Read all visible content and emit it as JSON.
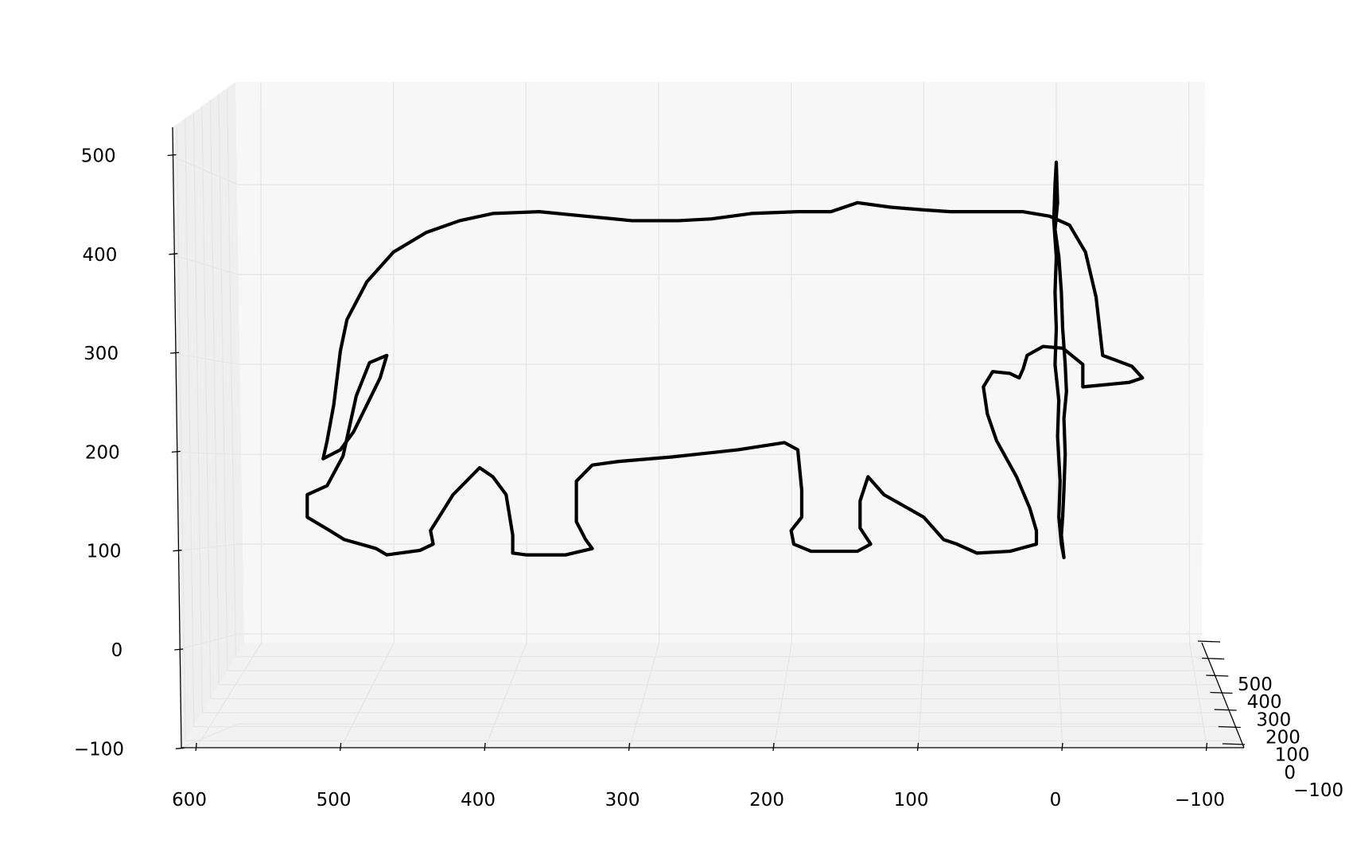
{
  "chart_data": {
    "type": "line3d",
    "title": "",
    "xlabel": "",
    "ylabel": "",
    "zlabel": "",
    "grid": true,
    "line_color": "#000000",
    "pane_color": "#f7f7f7",
    "grid_color": "#e6e6e6",
    "x_ticks": [
      "600",
      "500",
      "400",
      "300",
      "200",
      "100",
      "0",
      "−100"
    ],
    "y_ticks": [
      "500",
      "400",
      "300",
      "200",
      "100",
      "0",
      "−100"
    ],
    "z_ticks": [
      "500",
      "400",
      "300",
      "200",
      "100",
      "0",
      "−100"
    ],
    "xlim": [
      -100,
      630
    ],
    "ylim": [
      -100,
      630
    ],
    "zlim": [
      -100,
      535
    ],
    "series": [
      {
        "shape": "elephant outline",
        "color": "#000000",
        "points_xz": [
          [
            20,
            275
          ],
          [
            55,
            280
          ],
          [
            65,
            285
          ],
          [
            57,
            298
          ],
          [
            35,
            310
          ],
          [
            30,
            375
          ],
          [
            22,
            425
          ],
          [
            10,
            455
          ],
          [
            -5,
            465
          ],
          [
            -25,
            470
          ],
          [
            -45,
            470
          ],
          [
            -80,
            470
          ],
          [
            -100,
            472
          ],
          [
            -125,
            475
          ],
          [
            -150,
            480
          ],
          [
            -170,
            470
          ],
          [
            -195,
            470
          ],
          [
            -230,
            468
          ],
          [
            -260,
            462
          ],
          [
            -285,
            460
          ],
          [
            -320,
            460
          ],
          [
            -355,
            465
          ],
          [
            -390,
            470
          ],
          [
            -425,
            468
          ],
          [
            -450,
            460
          ],
          [
            -475,
            447
          ],
          [
            -500,
            425
          ],
          [
            -520,
            392
          ],
          [
            -535,
            350
          ],
          [
            -540,
            315
          ],
          [
            -545,
            255
          ],
          [
            -550,
            215
          ],
          [
            -553,
            195
          ],
          [
            -540,
            205
          ],
          [
            -530,
            225
          ],
          [
            -520,
            255
          ],
          [
            -510,
            285
          ],
          [
            -505,
            310
          ],
          [
            -518,
            302
          ],
          [
            -528,
            265
          ],
          [
            -538,
            198
          ],
          [
            -550,
            165
          ],
          [
            -565,
            155
          ],
          [
            -565,
            130
          ],
          [
            -548,
            115
          ],
          [
            -537,
            105
          ],
          [
            -520,
            98
          ],
          [
            -513,
            95
          ],
          [
            -505,
            88
          ],
          [
            -480,
            93
          ],
          [
            -470,
            100
          ],
          [
            -472,
            115
          ],
          [
            -455,
            155
          ],
          [
            -435,
            185
          ],
          [
            -425,
            175
          ],
          [
            -415,
            155
          ],
          [
            -410,
            110
          ],
          [
            -410,
            90
          ],
          [
            -400,
            88
          ],
          [
            -370,
            88
          ],
          [
            -350,
            95
          ],
          [
            -355,
            105
          ],
          [
            -362,
            125
          ],
          [
            -362,
            170
          ],
          [
            -350,
            188
          ],
          [
            -330,
            192
          ],
          [
            -290,
            197
          ],
          [
            -240,
            205
          ],
          [
            -205,
            213
          ],
          [
            -195,
            205
          ],
          [
            -192,
            160
          ],
          [
            -192,
            130
          ],
          [
            -200,
            115
          ],
          [
            -198,
            100
          ],
          [
            -185,
            92
          ],
          [
            -150,
            92
          ],
          [
            -140,
            100
          ],
          [
            -148,
            118
          ],
          [
            -148,
            148
          ],
          [
            -142,
            175
          ],
          [
            -130,
            155
          ],
          [
            -100,
            130
          ],
          [
            -85,
            105
          ],
          [
            -75,
            100
          ],
          [
            -60,
            90
          ],
          [
            -35,
            92
          ],
          [
            -15,
            100
          ],
          [
            -15,
            115
          ],
          [
            -20,
            140
          ],
          [
            -30,
            175
          ],
          [
            -45,
            215
          ],
          [
            -52,
            245
          ],
          [
            -55,
            275
          ],
          [
            -48,
            292
          ],
          [
            -35,
            290
          ],
          [
            -28,
            285
          ],
          [
            -25,
            295
          ],
          [
            -22,
            310
          ],
          [
            -10,
            320
          ],
          [
            5,
            318
          ],
          [
            20,
            300
          ],
          [
            20,
            275
          ]
        ],
        "points_yz": [
          [
            0,
            525
          ],
          [
            1,
            480
          ],
          [
            -1,
            450
          ],
          [
            2,
            420
          ],
          [
            4,
            380
          ],
          [
            5,
            340
          ],
          [
            7,
            300
          ],
          [
            8,
            270
          ],
          [
            6,
            240
          ],
          [
            7,
            200
          ],
          [
            6,
            160
          ],
          [
            5,
            130
          ],
          [
            4,
            110
          ],
          [
            6,
            85
          ],
          [
            4,
            100
          ],
          [
            2,
            130
          ],
          [
            3,
            170
          ],
          [
            1,
            220
          ],
          [
            2,
            260
          ],
          [
            -1,
            300
          ],
          [
            0,
            340
          ],
          [
            -1,
            380
          ],
          [
            0,
            420
          ],
          [
            -2,
            460
          ],
          [
            -1,
            500
          ],
          [
            0,
            525
          ]
        ]
      }
    ]
  }
}
